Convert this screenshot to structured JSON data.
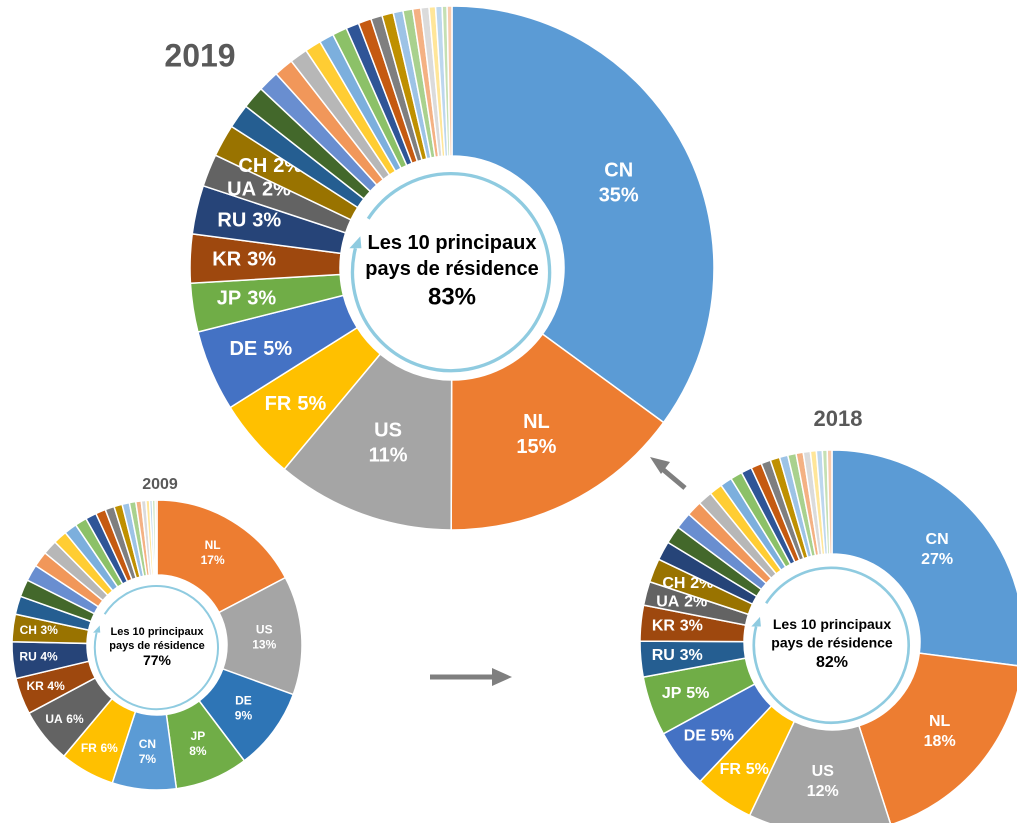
{
  "chart_data": [
    {
      "type": "donut",
      "title": "2019",
      "center_label": "Les 10 principaux pays de résidence",
      "center_value": "83%",
      "categories": [
        "CN",
        "NL",
        "US",
        "FR",
        "DE",
        "JP",
        "KR",
        "RU",
        "UA",
        "CH",
        null,
        null,
        null,
        null,
        null,
        null,
        null,
        null,
        null,
        null,
        null,
        null,
        null,
        null,
        null,
        null,
        null,
        null,
        null,
        null
      ],
      "values": [
        35,
        15,
        11,
        5,
        5,
        3,
        3,
        3,
        2,
        2,
        1.5,
        1.4,
        1.3,
        1.2,
        1.1,
        1.0,
        0.9,
        0.9,
        0.8,
        0.8,
        0.7,
        0.7,
        0.6,
        0.6,
        0.5,
        0.5,
        0.4,
        0.4,
        0.3,
        0.3
      ],
      "value_labels": [
        "35%",
        "15%",
        "11%",
        "5%",
        "5%",
        "3%",
        "3%",
        "3%",
        "2%",
        "2%",
        null,
        null,
        null,
        null,
        null,
        null,
        null,
        null,
        null,
        null,
        null,
        null,
        null,
        null,
        null,
        null,
        null,
        null,
        null,
        null
      ],
      "colors": [
        "#5b9bd5",
        "#ed7d31",
        "#a5a5a5",
        "#ffc000",
        "#4472c4",
        "#70ad47",
        "#9e480e",
        "#264478",
        "#636363",
        "#997300",
        "#255e91",
        "#43682b",
        "#698ed0",
        "#f1975a",
        "#b7b7b7",
        "#ffcd33",
        "#7cafdd",
        "#8cc168",
        "#2f5597",
        "#c55a11",
        "#7f7f7f",
        "#bf9000",
        "#9dc3e6",
        "#a9d18e",
        "#f4b183",
        "#dbdbdb",
        "#ffe699",
        "#bdd7ee",
        "#c5e0b4",
        "#f8cbad"
      ]
    },
    {
      "type": "donut",
      "title": "2018",
      "center_label": "Les 10 principaux pays de résidence",
      "center_value": "82%",
      "categories": [
        "CN",
        "NL",
        "US",
        "FR",
        "DE",
        "JP",
        "RU",
        "KR",
        "UA",
        "CH",
        null,
        null,
        null,
        null,
        null,
        null,
        null,
        null,
        null,
        null,
        null,
        null,
        null,
        null,
        null,
        null,
        null,
        null,
        null,
        null
      ],
      "values": [
        27,
        18,
        12,
        5,
        5,
        5,
        3,
        3,
        2,
        2,
        1.6,
        1.5,
        1.4,
        1.3,
        1.2,
        1.1,
        1.0,
        1.0,
        0.9,
        0.9,
        0.8,
        0.8,
        0.7,
        0.7,
        0.6,
        0.6,
        0.5,
        0.5,
        0.4,
        0.4
      ],
      "value_labels": [
        "27%",
        "18%",
        "12%",
        "5%",
        "5%",
        "5%",
        "3%",
        "3%",
        "2%",
        "2%",
        null,
        null,
        null,
        null,
        null,
        null,
        null,
        null,
        null,
        null,
        null,
        null,
        null,
        null,
        null,
        null,
        null,
        null,
        null,
        null
      ],
      "colors": [
        "#5b9bd5",
        "#ed7d31",
        "#a5a5a5",
        "#ffc000",
        "#4472c4",
        "#70ad47",
        "#255e91",
        "#9e480e",
        "#636363",
        "#997300",
        "#264478",
        "#43682b",
        "#698ed0",
        "#f1975a",
        "#b7b7b7",
        "#ffcd33",
        "#7cafdd",
        "#8cc168",
        "#2f5597",
        "#c55a11",
        "#7f7f7f",
        "#bf9000",
        "#9dc3e6",
        "#a9d18e",
        "#f4b183",
        "#dbdbdb",
        "#ffe699",
        "#bdd7ee",
        "#c5e0b4",
        "#f8cbad"
      ]
    },
    {
      "type": "donut",
      "title": "2009",
      "center_label": "Les 10 principaux pays de résidence",
      "center_value": "77%",
      "categories": [
        "NL",
        "US",
        "DE",
        "JP",
        "CN",
        "FR",
        "UA",
        "KR",
        "RU",
        "CH",
        null,
        null,
        null,
        null,
        null,
        null,
        null,
        null,
        null,
        null,
        null,
        null,
        null,
        null,
        null,
        null,
        null,
        null,
        null,
        null
      ],
      "values": [
        17,
        13,
        9,
        8,
        7,
        6,
        6,
        4,
        4,
        3,
        2.0,
        1.9,
        1.8,
        1.7,
        1.6,
        1.5,
        1.4,
        1.3,
        1.2,
        1.1,
        1.0,
        0.9,
        0.8,
        0.7,
        0.6,
        0.5,
        0.4,
        0.3,
        0.3,
        0.2
      ],
      "value_labels": [
        "17%",
        "13%",
        "9%",
        "8%",
        "7%",
        "6%",
        "6%",
        "4%",
        "4%",
        "3%",
        null,
        null,
        null,
        null,
        null,
        null,
        null,
        null,
        null,
        null,
        null,
        null,
        null,
        null,
        null,
        null,
        null,
        null,
        null,
        null
      ],
      "colors": [
        "#ed7d31",
        "#a5a5a5",
        "#2e75b6",
        "#70ad47",
        "#5b9bd5",
        "#ffc000",
        "#636363",
        "#9e480e",
        "#264478",
        "#997300",
        "#255e91",
        "#43682b",
        "#698ed0",
        "#f1975a",
        "#b7b7b7",
        "#ffcd33",
        "#7cafdd",
        "#8cc168",
        "#2f5597",
        "#c55a11",
        "#7f7f7f",
        "#bf9000",
        "#9dc3e6",
        "#a9d18e",
        "#f4b183",
        "#dbdbdb",
        "#ffe699",
        "#bdd7ee",
        "#c5e0b4",
        "#f8cbad"
      ]
    }
  ]
}
